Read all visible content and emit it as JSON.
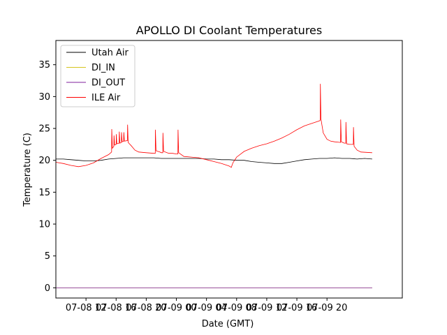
{
  "chart_data": {
    "type": "line",
    "title": "APOLLO DI Coolant Temperatures",
    "xlabel": "Date (GMT)",
    "ylabel": "Temperature (C)",
    "xlim": [
      4,
      50
    ],
    "ylim": [
      -1.6,
      38.8
    ],
    "x_unit": "hours since 07-08 04:00 GMT",
    "x_ticks": [
      {
        "value": 8,
        "label": "07-08 12"
      },
      {
        "value": 12,
        "label": "07-08 16"
      },
      {
        "value": 16,
        "label": "07-08 20"
      },
      {
        "value": 20,
        "label": "07-09 00"
      },
      {
        "value": 24,
        "label": "07-09 04"
      },
      {
        "value": 28,
        "label": "07-09 08"
      },
      {
        "value": 32,
        "label": "07-09 12"
      },
      {
        "value": 36,
        "label": "07-09 16"
      },
      {
        "value": 40,
        "label": "07-09 20"
      }
    ],
    "y_ticks": [
      {
        "value": 0,
        "label": "0"
      },
      {
        "value": 5,
        "label": "5"
      },
      {
        "value": 10,
        "label": "10"
      },
      {
        "value": 15,
        "label": "15"
      },
      {
        "value": 20,
        "label": "20"
      },
      {
        "value": 25,
        "label": "25"
      },
      {
        "value": 30,
        "label": "30"
      },
      {
        "value": 35,
        "label": "35"
      }
    ],
    "legend_position": "upper-left",
    "series": [
      {
        "name": "Utah Air",
        "color": "#000000",
        "points": [
          [
            4.0,
            20.2
          ],
          [
            5.0,
            20.2
          ],
          [
            6.0,
            20.1
          ],
          [
            7.0,
            20.0
          ],
          [
            8.0,
            19.9
          ],
          [
            9.0,
            19.9
          ],
          [
            10.0,
            20.0
          ],
          [
            11.0,
            20.2
          ],
          [
            12.0,
            20.3
          ],
          [
            13.0,
            20.4
          ],
          [
            14.0,
            20.4
          ],
          [
            15.0,
            20.4
          ],
          [
            16.0,
            20.4
          ],
          [
            17.0,
            20.4
          ],
          [
            18.0,
            20.3
          ],
          [
            19.0,
            20.3
          ],
          [
            20.0,
            20.3
          ],
          [
            21.0,
            20.3
          ],
          [
            22.0,
            20.3
          ],
          [
            23.0,
            20.3
          ],
          [
            24.0,
            20.2
          ],
          [
            25.0,
            20.2
          ],
          [
            26.0,
            20.1
          ],
          [
            27.0,
            20.1
          ],
          [
            28.0,
            20.0
          ],
          [
            29.0,
            20.0
          ],
          [
            30.0,
            19.8
          ],
          [
            31.0,
            19.7
          ],
          [
            32.0,
            19.6
          ],
          [
            33.0,
            19.5
          ],
          [
            34.0,
            19.5
          ],
          [
            35.0,
            19.7
          ],
          [
            36.0,
            19.9
          ],
          [
            37.0,
            20.1
          ],
          [
            38.0,
            20.2
          ],
          [
            39.0,
            20.3
          ],
          [
            40.0,
            20.3
          ],
          [
            41.0,
            20.4
          ],
          [
            42.0,
            20.3
          ],
          [
            43.0,
            20.3
          ],
          [
            44.0,
            20.2
          ],
          [
            45.0,
            20.3
          ],
          [
            46.0,
            20.2
          ]
        ]
      },
      {
        "name": "DI_IN",
        "color": "#d4c41c",
        "points": [
          [
            4.0,
            0.0
          ],
          [
            46.0,
            0.0
          ]
        ]
      },
      {
        "name": "DI_OUT",
        "color": "#7f1f9e",
        "points": [
          [
            4.0,
            0.0
          ],
          [
            46.0,
            0.0
          ]
        ]
      },
      {
        "name": "ILE Air",
        "color": "#ff0000",
        "points": [
          [
            4.0,
            19.7
          ],
          [
            5.0,
            19.5
          ],
          [
            6.0,
            19.2
          ],
          [
            7.0,
            19.0
          ],
          [
            8.0,
            19.2
          ],
          [
            9.0,
            19.6
          ],
          [
            10.0,
            20.3
          ],
          [
            11.0,
            20.9
          ],
          [
            11.4,
            21.3
          ],
          [
            11.42,
            24.9
          ],
          [
            11.5,
            21.9
          ],
          [
            11.7,
            22.2
          ],
          [
            11.72,
            23.9
          ],
          [
            11.8,
            22.4
          ],
          [
            12.0,
            22.5
          ],
          [
            12.02,
            24.1
          ],
          [
            12.1,
            22.6
          ],
          [
            12.4,
            22.7
          ],
          [
            12.42,
            24.5
          ],
          [
            12.5,
            22.7
          ],
          [
            12.7,
            22.8
          ],
          [
            12.72,
            24.4
          ],
          [
            12.8,
            22.9
          ],
          [
            13.0,
            23.0
          ],
          [
            13.02,
            24.4
          ],
          [
            13.1,
            23.0
          ],
          [
            13.5,
            23.1
          ],
          [
            13.52,
            25.6
          ],
          [
            13.6,
            22.8
          ],
          [
            14.0,
            22.3
          ],
          [
            14.5,
            21.6
          ],
          [
            15.0,
            21.3
          ],
          [
            16.0,
            21.2
          ],
          [
            17.0,
            21.1
          ],
          [
            17.2,
            21.1
          ],
          [
            17.22,
            24.8
          ],
          [
            17.3,
            21.5
          ],
          [
            17.8,
            21.3
          ],
          [
            18.0,
            21.2
          ],
          [
            18.2,
            21.2
          ],
          [
            18.22,
            24.3
          ],
          [
            18.3,
            21.4
          ],
          [
            19.0,
            21.1
          ],
          [
            19.5,
            21.1
          ],
          [
            20.0,
            21.0
          ],
          [
            20.2,
            21.0
          ],
          [
            20.22,
            24.8
          ],
          [
            20.3,
            21.2
          ],
          [
            21.0,
            20.6
          ],
          [
            22.0,
            20.5
          ],
          [
            23.0,
            20.4
          ],
          [
            24.0,
            20.1
          ],
          [
            25.0,
            19.8
          ],
          [
            26.0,
            19.5
          ],
          [
            27.0,
            19.1
          ],
          [
            27.3,
            18.9
          ],
          [
            27.5,
            19.6
          ],
          [
            28.0,
            20.5
          ],
          [
            29.0,
            21.4
          ],
          [
            30.0,
            21.9
          ],
          [
            31.0,
            22.3
          ],
          [
            32.0,
            22.6
          ],
          [
            33.0,
            23.0
          ],
          [
            34.0,
            23.5
          ],
          [
            35.0,
            24.1
          ],
          [
            36.0,
            24.8
          ],
          [
            37.0,
            25.4
          ],
          [
            38.0,
            25.8
          ],
          [
            39.0,
            26.2
          ],
          [
            39.1,
            26.3
          ],
          [
            39.12,
            32.0
          ],
          [
            39.2,
            26.5
          ],
          [
            39.5,
            24.3
          ],
          [
            40.0,
            23.3
          ],
          [
            40.5,
            23.0
          ],
          [
            41.0,
            22.9
          ],
          [
            41.8,
            22.8
          ],
          [
            41.82,
            26.4
          ],
          [
            41.9,
            22.9
          ],
          [
            42.3,
            22.7
          ],
          [
            42.5,
            22.7
          ],
          [
            42.52,
            26.0
          ],
          [
            42.6,
            22.6
          ],
          [
            43.0,
            22.5
          ],
          [
            43.5,
            22.5
          ],
          [
            43.52,
            25.2
          ],
          [
            43.6,
            22.2
          ],
          [
            44.0,
            21.6
          ],
          [
            44.5,
            21.3
          ],
          [
            46.0,
            21.2
          ]
        ]
      }
    ]
  }
}
